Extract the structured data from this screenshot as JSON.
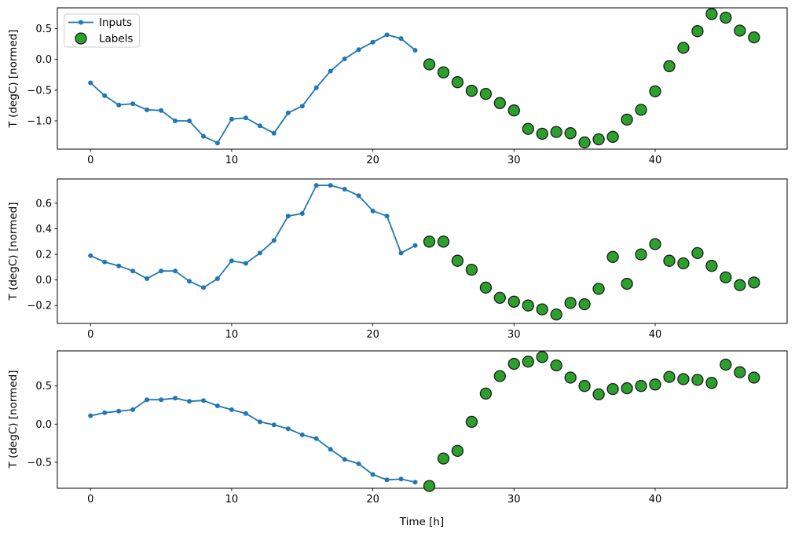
{
  "figure": {
    "background": "#ffffff"
  },
  "legend": {
    "position": "upper-left",
    "items": [
      {
        "label": "Inputs",
        "marker": "line-with-dot",
        "color": "#1f77b4"
      },
      {
        "label": "Labels",
        "marker": "filled-circle",
        "color": "#2ca02c"
      }
    ]
  },
  "chart_data": [
    {
      "type": "line",
      "title": "",
      "ylabel": "T (degC) [normed]",
      "xlabel": "",
      "grid": false,
      "legend_position": "upper-left",
      "xlim": [
        -2.35,
        49.35
      ],
      "ylim": [
        -1.46,
        0.84
      ],
      "xticks": [
        0,
        10,
        20,
        30,
        40
      ],
      "xticklabels": [
        "0",
        "10",
        "20",
        "30",
        "40"
      ],
      "yticks": [
        0.5,
        0.0,
        -0.5,
        -1.0
      ],
      "yticklabels": [
        "0.5",
        "0.0",
        "−0.5",
        "−1.0"
      ],
      "series": [
        {
          "name": "Inputs",
          "type": "line+marker",
          "color": "#1f77b4",
          "x": [
            0,
            1,
            2,
            3,
            4,
            5,
            6,
            7,
            8,
            9,
            10,
            11,
            12,
            13,
            14,
            15,
            16,
            17,
            18,
            19,
            20,
            21,
            22,
            23
          ],
          "y": [
            -0.38,
            -0.59,
            -0.74,
            -0.72,
            -0.82,
            -0.83,
            -1.0,
            -1.0,
            -1.25,
            -1.36,
            -0.97,
            -0.95,
            -1.08,
            -1.2,
            -0.87,
            -0.76,
            -0.46,
            -0.19,
            0.01,
            0.16,
            0.28,
            0.4,
            0.34,
            0.15
          ]
        },
        {
          "name": "Labels",
          "type": "scatter",
          "color": "#2ca02c",
          "edge_color": "#1a1a1a",
          "x": [
            24,
            25,
            26,
            27,
            28,
            29,
            30,
            31,
            32,
            33,
            34,
            35,
            36,
            37,
            38,
            39,
            40,
            41,
            42,
            43,
            44,
            45,
            46,
            47
          ],
          "y": [
            -0.08,
            -0.21,
            -0.37,
            -0.51,
            -0.56,
            -0.71,
            -0.83,
            -1.13,
            -1.21,
            -1.18,
            -1.2,
            -1.35,
            -1.3,
            -1.26,
            -0.98,
            -0.82,
            -0.52,
            -0.11,
            0.19,
            0.46,
            0.74,
            0.68,
            0.47,
            0.36
          ]
        }
      ]
    },
    {
      "type": "line",
      "title": "",
      "ylabel": "T (degC) [normed]",
      "xlabel": "",
      "grid": false,
      "xlim": [
        -2.35,
        49.35
      ],
      "ylim": [
        -0.34,
        0.79
      ],
      "xticks": [
        0,
        10,
        20,
        30,
        40
      ],
      "xticklabels": [
        "0",
        "10",
        "20",
        "30",
        "40"
      ],
      "yticks": [
        0.6,
        0.4,
        0.2,
        0.0,
        -0.2
      ],
      "yticklabels": [
        "0.6",
        "0.4",
        "0.2",
        "0.0",
        "−0.2"
      ],
      "series": [
        {
          "name": "Inputs",
          "type": "line+marker",
          "color": "#1f77b4",
          "x": [
            0,
            1,
            2,
            3,
            4,
            5,
            6,
            7,
            8,
            9,
            10,
            11,
            12,
            13,
            14,
            15,
            16,
            17,
            18,
            19,
            20,
            21,
            22,
            23
          ],
          "y": [
            0.19,
            0.14,
            0.11,
            0.07,
            0.01,
            0.07,
            0.07,
            -0.01,
            -0.06,
            0.01,
            0.15,
            0.13,
            0.21,
            0.31,
            0.5,
            0.52,
            0.74,
            0.74,
            0.71,
            0.66,
            0.54,
            0.5,
            0.21,
            0.27
          ]
        },
        {
          "name": "Labels",
          "type": "scatter",
          "color": "#2ca02c",
          "edge_color": "#1a1a1a",
          "x": [
            24,
            25,
            26,
            27,
            28,
            29,
            30,
            31,
            32,
            33,
            34,
            35,
            36,
            37,
            38,
            39,
            40,
            41,
            42,
            43,
            44,
            45,
            46,
            47
          ],
          "y": [
            0.3,
            0.3,
            0.15,
            0.08,
            -0.06,
            -0.14,
            -0.17,
            -0.2,
            -0.23,
            -0.27,
            -0.18,
            -0.19,
            -0.07,
            0.18,
            -0.03,
            0.2,
            0.28,
            0.15,
            0.13,
            0.21,
            0.11,
            0.02,
            -0.04,
            -0.02
          ]
        }
      ]
    },
    {
      "type": "line",
      "title": "",
      "ylabel": "T (degC) [normed]",
      "xlabel": "Time [h]",
      "grid": false,
      "xlim": [
        -2.35,
        49.35
      ],
      "ylim": [
        -0.84,
        0.96
      ],
      "xticks": [
        0,
        10,
        20,
        30,
        40
      ],
      "xticklabels": [
        "0",
        "10",
        "20",
        "30",
        "40"
      ],
      "yticks": [
        0.5,
        0.0,
        -0.5
      ],
      "yticklabels": [
        "0.5",
        "0.0",
        "−0.5"
      ],
      "series": [
        {
          "name": "Inputs",
          "type": "line+marker",
          "color": "#1f77b4",
          "x": [
            0,
            1,
            2,
            3,
            4,
            5,
            6,
            7,
            8,
            9,
            10,
            11,
            12,
            13,
            14,
            15,
            16,
            17,
            18,
            19,
            20,
            21,
            22,
            23
          ],
          "y": [
            0.11,
            0.15,
            0.17,
            0.19,
            0.32,
            0.32,
            0.34,
            0.3,
            0.31,
            0.24,
            0.19,
            0.14,
            0.03,
            -0.01,
            -0.06,
            -0.14,
            -0.19,
            -0.33,
            -0.46,
            -0.52,
            -0.66,
            -0.73,
            -0.72,
            -0.76
          ]
        },
        {
          "name": "Labels",
          "type": "scatter",
          "color": "#2ca02c",
          "edge_color": "#1a1a1a",
          "x": [
            24,
            25,
            26,
            27,
            28,
            29,
            30,
            31,
            32,
            33,
            34,
            35,
            36,
            37,
            38,
            39,
            40,
            41,
            42,
            43,
            44,
            45,
            46,
            47
          ],
          "y": [
            -0.81,
            -0.45,
            -0.35,
            0.03,
            0.4,
            0.63,
            0.79,
            0.82,
            0.88,
            0.77,
            0.61,
            0.5,
            0.39,
            0.46,
            0.47,
            0.5,
            0.52,
            0.62,
            0.59,
            0.58,
            0.54,
            0.78,
            0.68,
            0.61
          ]
        }
      ]
    }
  ]
}
